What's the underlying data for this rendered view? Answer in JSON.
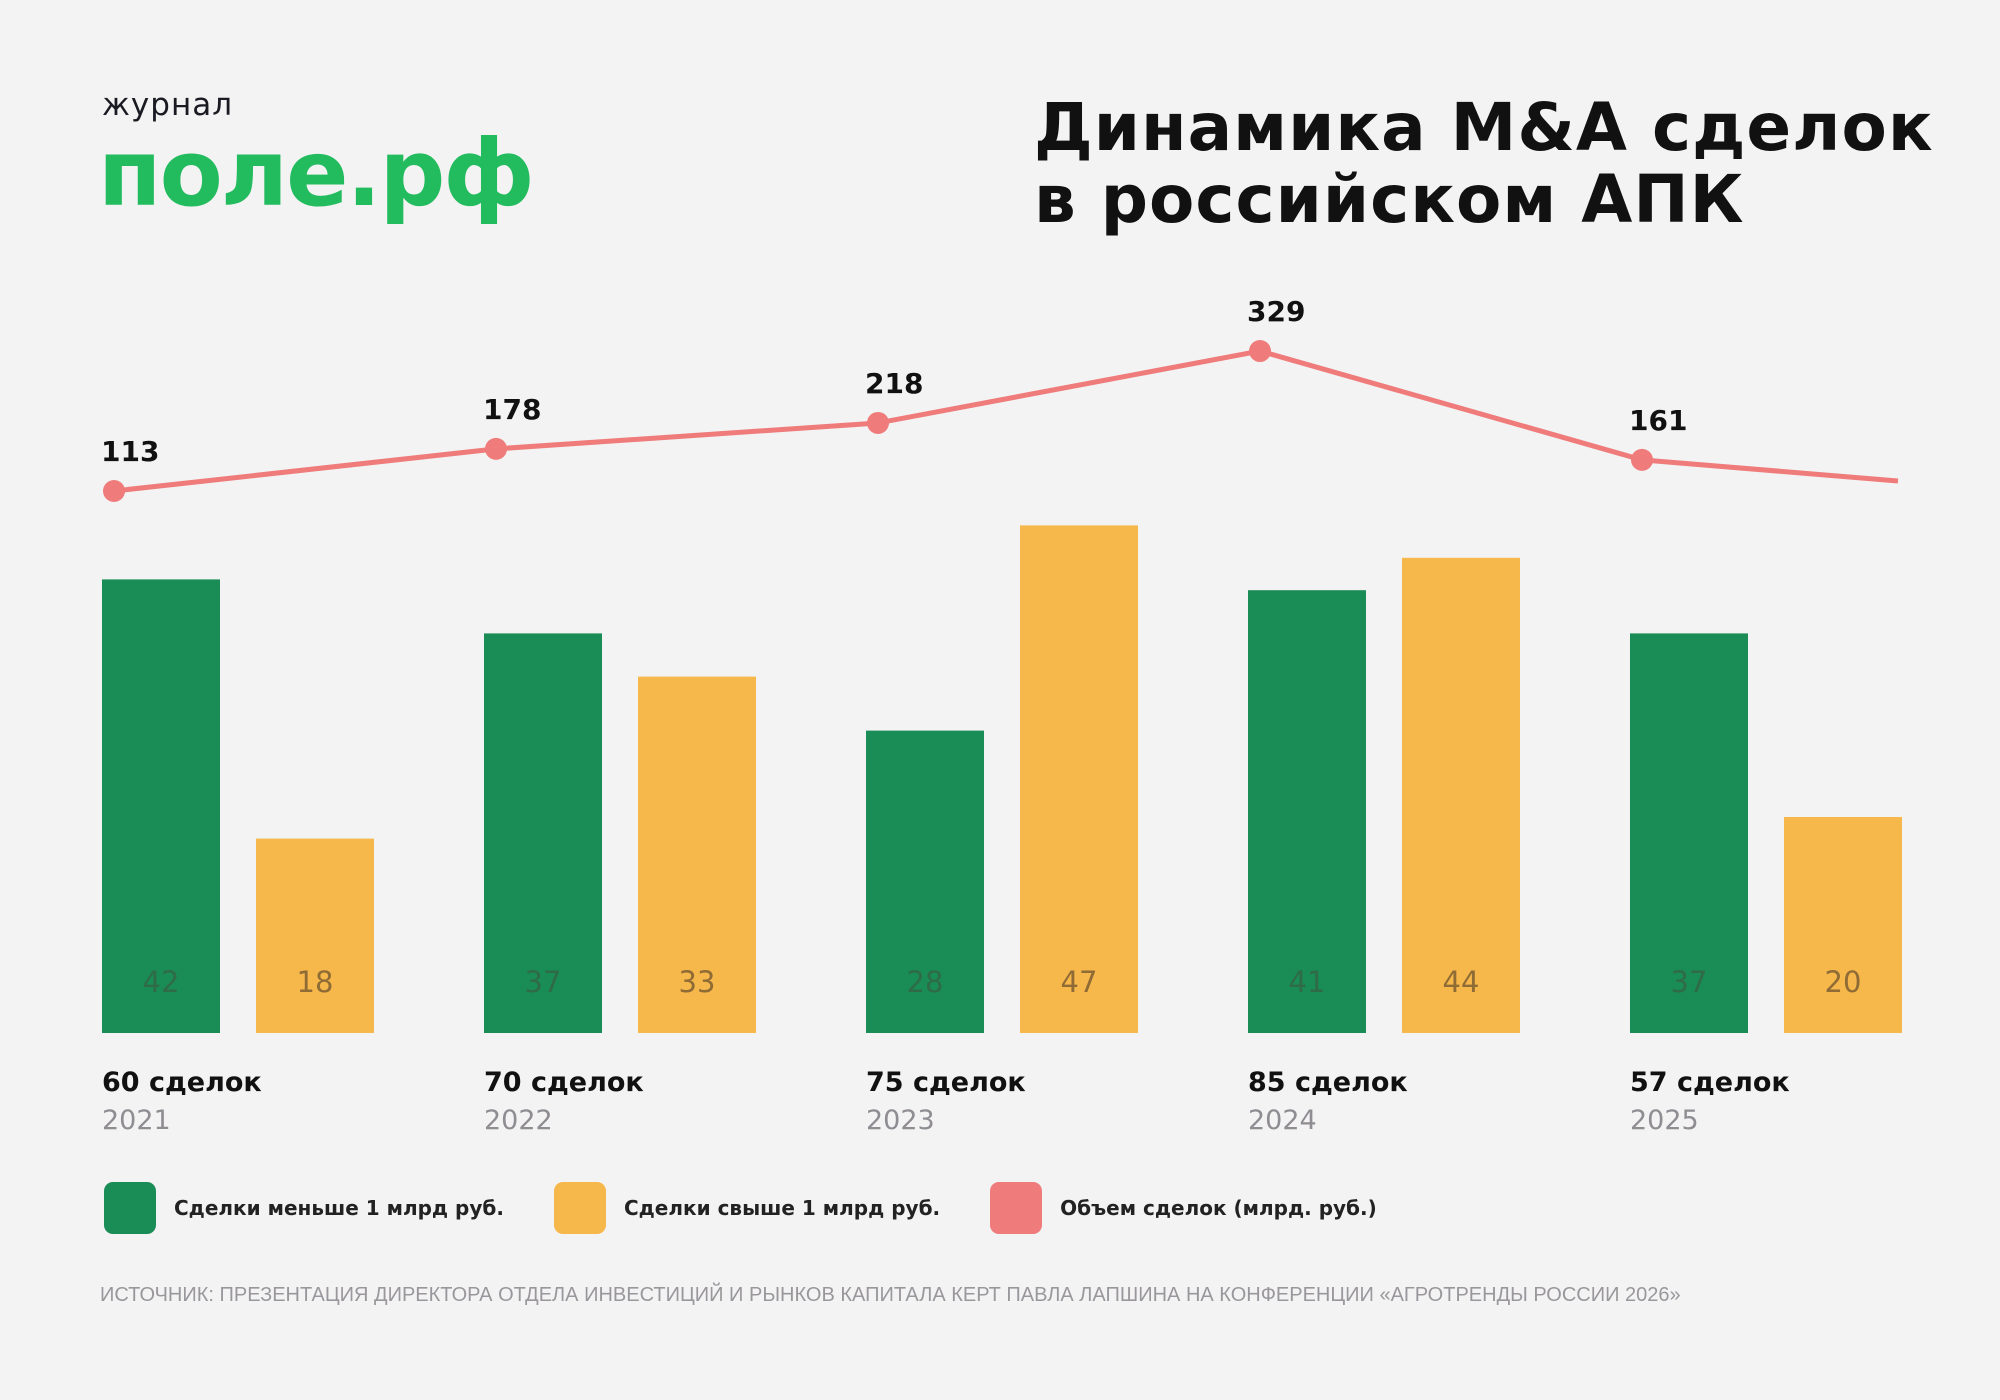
{
  "logo": {
    "small": "журнал",
    "big": "поле.рф"
  },
  "title_lines": [
    "Динамика M&A сделок",
    "в российском АПК"
  ],
  "colors": {
    "small_deals": "#1a8c55",
    "large_deals": "#f6b74b",
    "volume": "#ef7b7b",
    "small_label": "#2f6b47",
    "large_label": "#8f6b35"
  },
  "chart_data": {
    "type": "bar",
    "categories": [
      "2021",
      "2022",
      "2023",
      "2024",
      "2025"
    ],
    "totals": [
      "60 сделок",
      "70 сделок",
      "75 сделок",
      "85 сделок",
      "57 сделок"
    ],
    "series": [
      {
        "name": "Сделки меньше 1 млрд руб.",
        "type": "bar",
        "values": [
          42,
          37,
          28,
          41,
          37
        ]
      },
      {
        "name": "Сделки свыше 1 млрд руб.",
        "type": "bar",
        "values": [
          18,
          33,
          47,
          44,
          20
        ]
      },
      {
        "name": "Объем сделок (млрд. руб.)",
        "type": "line",
        "values": [
          113,
          178,
          218,
          329,
          161
        ]
      }
    ],
    "grid": false,
    "legend_placement": "bottom"
  },
  "source": "ИСТОЧНИК: ПРЕЗЕНТАЦИЯ ДИРЕКТОРА ОТДЕЛА ИНВЕСТИЦИЙ И РЫНКОВ КАПИТАЛА КЕРТ ПАВЛА ЛАПШИНА НА КОНФЕРЕНЦИИ «АГРОТРЕНДЫ РОССИИ 2026»"
}
